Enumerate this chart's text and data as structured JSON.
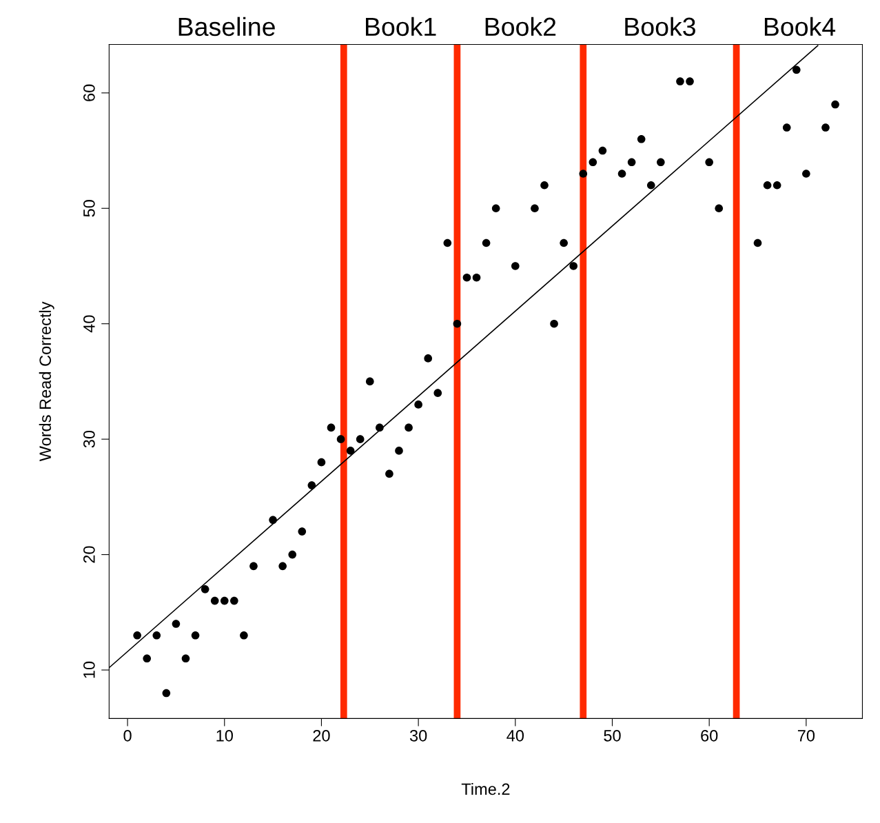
{
  "chart_data": {
    "type": "scatter",
    "xlabel": "Time.2",
    "ylabel": "Words Read Correctly",
    "x": [
      1,
      2,
      3,
      4,
      5,
      6,
      7,
      8,
      9,
      10,
      11,
      12,
      13,
      15,
      16,
      17,
      18,
      19,
      20,
      21,
      22,
      23,
      24,
      25,
      26,
      27,
      28,
      29,
      30,
      31,
      32,
      33,
      34,
      35,
      36,
      37,
      38,
      40,
      42,
      43,
      44,
      45,
      46,
      47,
      48,
      49,
      51,
      52,
      53,
      54,
      55,
      57,
      58,
      60,
      61,
      65,
      66,
      67,
      68,
      69,
      70,
      72,
      73
    ],
    "series": [
      {
        "color": "#000000",
        "marker": "circle",
        "values": [
          13,
          11,
          13,
          8,
          14,
          11,
          13,
          17,
          16,
          16,
          16,
          13,
          19,
          23,
          19,
          20,
          22,
          26,
          28,
          31,
          30,
          29,
          30,
          35,
          31,
          27,
          29,
          31,
          33,
          37,
          34,
          47,
          40,
          44,
          44,
          47,
          50,
          45,
          50,
          52,
          40,
          47,
          45,
          53,
          54,
          55,
          53,
          54,
          56,
          52,
          54,
          61,
          61,
          54,
          50,
          47,
          52,
          52,
          57,
          62,
          53,
          57,
          59
        ]
      },
      {
        "type": "line",
        "color": "#000000",
        "marker": "none",
        "line_style": "solid",
        "x": [
          -1.9,
          71.2
        ],
        "values": [
          10.2,
          64.1
        ]
      }
    ],
    "ref_lines": [
      {
        "axis": "x",
        "value": 22.3,
        "color": "#ff2a00"
      },
      {
        "axis": "x",
        "value": 34,
        "color": "#ff2a00"
      },
      {
        "axis": "x",
        "value": 47,
        "color": "#ff2a00"
      },
      {
        "axis": "x",
        "value": 62.8,
        "color": "#ff2a00"
      }
    ],
    "annotations": [
      "Baseline",
      "Book1",
      "Book2",
      "Book3",
      "Book4"
    ],
    "xlim": [
      -1.9,
      75.8
    ],
    "ylim": [
      5.8,
      64.2
    ],
    "xticks": [
      0,
      10,
      20,
      30,
      40,
      50,
      60,
      70
    ],
    "yticks": [
      10,
      20,
      30,
      40,
      50,
      60
    ],
    "grid": false,
    "legend": false
  }
}
